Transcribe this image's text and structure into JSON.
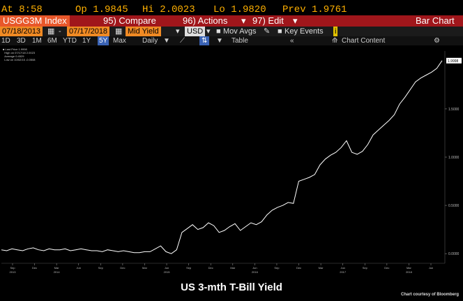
{
  "quote": {
    "time_label": "At 8:58",
    "open_label": "Op 1.9845",
    "high_label": "Hi 2.0023",
    "low_label": "Lo 1.9820",
    "prev_label": "Prev 1.9761"
  },
  "menubar": {
    "ticker": "USGG3M Index",
    "compare": "95) Compare",
    "actions": "96) Actions",
    "edit": "97) Edit",
    "view": "Bar Chart"
  },
  "controls": {
    "start_date": "07/18/2013",
    "end_date": "07/17/2018",
    "field": "Mid Yield",
    "currency": "USD",
    "mov_avgs": "Mov Avgs",
    "key_events": "Key Events",
    "table": "Table",
    "chart_content": "Chart Content"
  },
  "periods": [
    "1D",
    "3D",
    "1M",
    "6M",
    "YTD",
    "1Y",
    "5Y",
    "Max"
  ],
  "period_selected": "5Y",
  "frequency": "Daily",
  "legend": {
    "last_price": "Last Price",
    "last_value": "1.9998",
    "high": "High on 07/17/18",
    "high_value": "2.0023",
    "average": "Average",
    "average_value": "0.4529",
    "low": "Low on 10/02/15",
    "low_value": "-0.0508"
  },
  "chart_data": {
    "type": "line",
    "title": "US 3-mth T-Bill Yield",
    "xlabel": "",
    "ylabel": "",
    "ylim": [
      -0.1,
      2.1
    ],
    "y_ticks": [
      0.0,
      0.5,
      1.0,
      1.5
    ],
    "y_tick_labels": [
      "0.0000",
      "0.5000",
      "1.0000",
      "1.5000"
    ],
    "last_value_label": "1.9998",
    "x_tick_labels": [
      {
        "label": "Sep",
        "year": "2013"
      },
      {
        "label": "Dec",
        "year": ""
      },
      {
        "label": "Mar",
        "year": "2014"
      },
      {
        "label": "Jun",
        "year": ""
      },
      {
        "label": "Sep",
        "year": ""
      },
      {
        "label": "Dec",
        "year": ""
      },
      {
        "label": "Mar",
        "year": ""
      },
      {
        "label": "Jun",
        "year": "2015"
      },
      {
        "label": "Sep",
        "year": ""
      },
      {
        "label": "Dec",
        "year": ""
      },
      {
        "label": "Mar",
        "year": ""
      },
      {
        "label": "Jun",
        "year": "2016"
      },
      {
        "label": "Sep",
        "year": ""
      },
      {
        "label": "Dec",
        "year": ""
      },
      {
        "label": "Mar",
        "year": ""
      },
      {
        "label": "Jun",
        "year": "2017"
      },
      {
        "label": "Sep",
        "year": ""
      },
      {
        "label": "Dec",
        "year": ""
      },
      {
        "label": "Mar",
        "year": "2018"
      },
      {
        "label": "Jun",
        "year": ""
      }
    ],
    "series": [
      {
        "values": [
          0.04,
          0.03,
          0.05,
          0.04,
          0.03,
          0.05,
          0.06,
          0.04,
          0.03,
          0.05,
          0.04,
          0.04,
          0.05,
          0.03,
          0.04,
          0.05,
          0.04,
          0.03,
          0.03,
          0.02,
          0.04,
          0.03,
          0.02,
          0.03,
          0.02,
          0.01,
          0.01,
          0.02,
          0.02,
          0.05,
          0.08,
          0.02,
          0.0,
          0.04,
          0.22,
          0.26,
          0.3,
          0.25,
          0.27,
          0.32,
          0.29,
          0.22,
          0.24,
          0.28,
          0.31,
          0.24,
          0.28,
          0.32,
          0.3,
          0.33,
          0.4,
          0.45,
          0.48,
          0.5,
          0.53,
          0.52,
          0.75,
          0.77,
          0.79,
          0.82,
          0.92,
          0.98,
          1.02,
          1.05,
          1.1,
          1.17,
          1.05,
          1.03,
          1.06,
          1.13,
          1.23,
          1.28,
          1.33,
          1.38,
          1.44,
          1.55,
          1.62,
          1.7,
          1.78,
          1.82,
          1.85,
          1.88,
          1.92,
          2.0
        ]
      }
    ]
  }
}
